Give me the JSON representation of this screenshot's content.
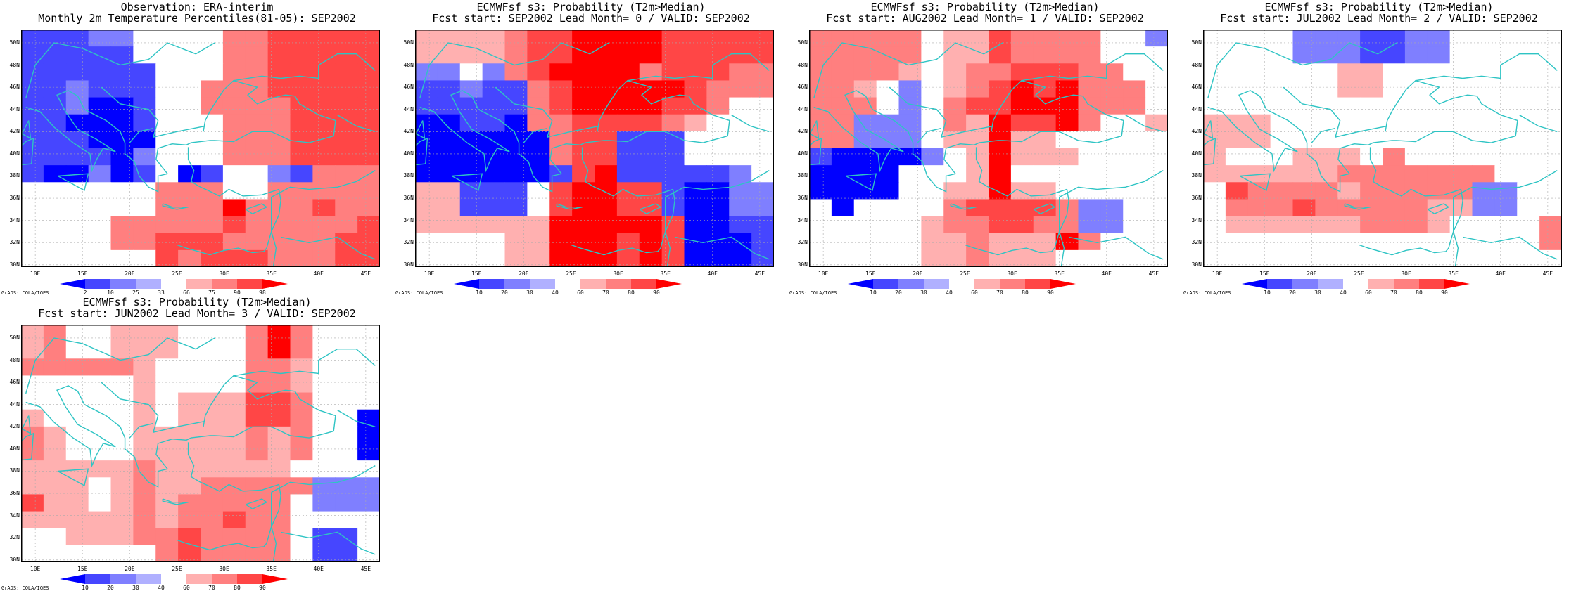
{
  "map_data": {
    "lon_ticks": [
      "10E",
      "15E",
      "20E",
      "25E",
      "30E",
      "35E",
      "40E",
      "45E"
    ],
    "lat_ticks": [
      "50N",
      "48N",
      "46N",
      "44N",
      "42N",
      "40N",
      "38N",
      "36N",
      "34N",
      "32N",
      "30N"
    ],
    "grads_credit": "GrADS: COLA/IGES",
    "colors": [
      "#0000ff",
      "#4646ff",
      "#7f7fff",
      "#b0b0ff",
      "#ffffff",
      "#ffb0b0",
      "#ff7f7f",
      "#ff4646",
      "#ff0000"
    ],
    "panels": [
      {
        "title1": "Observation: ERA-interim",
        "title2": "Monthly 2m Temperature Percentiles(81-05): SEP2002",
        "colorbar_ticks": [
          "2",
          "10",
          "25",
          "33",
          "66",
          "75",
          "90",
          "98"
        ],
        "rows": [
          "BBBCCEEEEGGHHHHH",
          "BBBBBEEEEGGHHHHH",
          "BBBBBBEEEGGHHHHH",
          "BBCBBBEEGGGHHHHH",
          "BBCAABEEGGGGHHHH",
          "BBAAABEEEGGGHHHH",
          "BBBAAAEEEGGGHHHH",
          "BBBBACEEEGGGHHHH",
          "BAACABEABEECBGGG",
          "EEEEEEGGGEEGGGGG",
          "EEEEEEGGGIGGGHGG",
          "EEEEGGGGGHGGGGGH",
          "EEEEGGHHHGGGGGHH",
          "EEEEEEHGHHHGGGHH"
        ]
      },
      {
        "title1": "ECMWFsf s3: Probability (T2m>Median)",
        "title2": "Fcst start: SEP2002  Lead Month= 0 / VALID: SEP2002",
        "colorbar_ticks": [
          "10",
          "20",
          "30",
          "40",
          "60",
          "70",
          "80",
          "90"
        ],
        "rows": [
          "FFFFGHHIIIIHHHHH",
          "FFFFGHHIIIIHHHHH",
          "CCECGHIIIIGHHHGG",
          "BBCBBGHIIIIIHGGG",
          "BBBBBGHIIIIHHGEE",
          "AABBAGGHHHHGFEEE",
          "AAAAAAGHHBBBEEEE",
          "AAAAAAGHHBBBEEEE",
          "AAAAAABHIBBBBBCE",
          "FFBBBEHIIHHBAACC",
          "FFBBBEHIIHHBAACC",
          "FFFFFFIIIIIHAABB",
          "EEEEFFIIIHIHAAAB",
          "EEEEFFIIIHIHAAAB"
        ]
      },
      {
        "title1": "ECMWFsf s3: Probability (T2m>Median)",
        "title2": "Fcst start: AUG2002  Lead Month= 1 / VALID: SEP2002",
        "colorbar_ticks": [
          "10",
          "20",
          "30",
          "40",
          "60",
          "70",
          "80",
          "90"
        ],
        "rows": [
          "GGGGGEFFHGGGGEEC",
          "GGGGGEFFHGGGGEEE",
          "GGGGFEFGGHHHGGEE",
          "GGFECEFGHIHIGGGE",
          "GGGECEGHHIIIGGGE",
          "GGCCCEGFIHHIGEEF",
          "GGCCCEFFIFFEEEEE",
          "BAAAACEFIFFFEEEE",
          "AAAAEEEFIEEEEEEE",
          "AAAAEEFFIFFEEEEE",
          "EAEEEEGHHHHGCCEE",
          "EEEEEFGGHHGGCCEE",
          "EEEEEFFGFFFIGEEE",
          "EEEEEFFGFFFEEEEE"
        ]
      },
      {
        "title1": "ECMWFsf s3: Probability (T2m>Median)",
        "title2": "Fcst start: JUL2002  Lead Month= 2 / VALID: SEP2002",
        "colorbar_ticks": [
          "10",
          "20",
          "30",
          "40",
          "60",
          "70",
          "80",
          "90"
        ],
        "rows": [
          "EEEECCCBBCCEEEEE",
          "EEEECCCBBCCEEEEE",
          "EEEEEEFFEEEEEEEE",
          "EEEEEEFFEEEEEEEE",
          "EEEEEEEEEEEEEEEE",
          "FFFEEEEEEEEEEEEE",
          "FFFEEEEEEEEEEEEE",
          "FEEEFFFEGEEEEEEE",
          "FFFFFFGGGGGGGEEE",
          "EHGGGGFGGGGGCCEE",
          "EGGGHGGGGGFFCCEE",
          "EFFFFFFGGGFEEEEG",
          "EEEEEEEEEEEEEEEG",
          "EEEEEEEEEEEEEEEE"
        ]
      },
      {
        "title1": "ECMWFsf s3: Probability (T2m>Median)",
        "title2": "Fcst start: JUN2002  Lead Month= 3 / VALID: SEP2002",
        "colorbar_ticks": [
          "10",
          "20",
          "30",
          "40",
          "60",
          "70",
          "80",
          "90"
        ],
        "rows": [
          "FGEEFFFEEEGIGEEE",
          "FGEEFFFEEEGIGEEE",
          "GGGGGFEEEEGGFEEE",
          "EEEEEFEEEEGGFEEE",
          "EEEEEFEFFFHHGEEE",
          "FEEEEFEFFFHHGEEA",
          "GFEEEFFFFFGFGEEA",
          "GFEEEFFFFFGFGEEA",
          "FFFFFGFFFFFFEEEE",
          "FFFEFGFFGGGGGCCC",
          "HFFEFGFGGGGGECCC",
          "FFFFFGFGGHGGEEEE",
          "EEFFFGGHGGGGEBBE",
          "EEEEEEGHGGGGEBBE"
        ]
      }
    ]
  }
}
